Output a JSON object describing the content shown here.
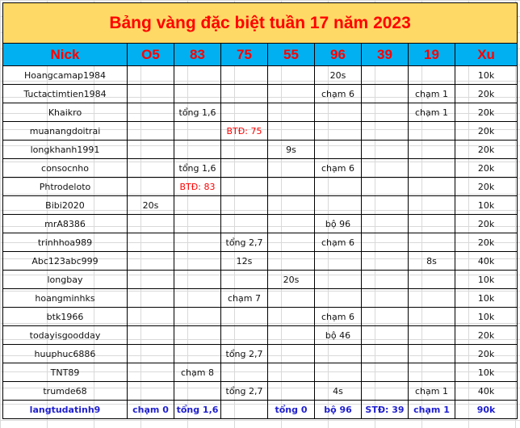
{
  "title": "Bảng vàng đặc biệt tuần 17 năm 2023",
  "columns": [
    "Nick",
    "O5",
    "83",
    "75",
    "55",
    "96",
    "39",
    "19",
    "Xu"
  ],
  "colors": {
    "title_bg": "#ffd966",
    "header_bg": "#00b0f0",
    "header_text": "#ff0000",
    "highlight_red": "#ff0000",
    "highlight_blue": "#1f1fd0"
  },
  "rows": [
    {
      "cells": [
        "Hoangcamap1984",
        "",
        "",
        "",
        "",
        "20s",
        "",
        "",
        "10k"
      ]
    },
    {
      "cells": [
        "Tuctactimtien1984",
        "",
        "",
        "",
        "",
        "chạm 6",
        "",
        "chạm 1",
        "20k"
      ]
    },
    {
      "cells": [
        "Khaikro",
        "",
        "tổng 1,6",
        "",
        "",
        "",
        "",
        "chạm 1",
        "20k"
      ]
    },
    {
      "cells": [
        "muanangdoitrai",
        "",
        "",
        "BTĐ: 75",
        "",
        "",
        "",
        "",
        "20k"
      ],
      "red": [
        3
      ]
    },
    {
      "cells": [
        "longkhanh1991",
        "",
        "",
        "",
        "9s",
        "",
        "",
        "",
        "20k"
      ]
    },
    {
      "cells": [
        "consocnho",
        "",
        "tổng 1,6",
        "",
        "",
        "chạm 6",
        "",
        "",
        "20k"
      ]
    },
    {
      "cells": [
        "Phtrodeloto",
        "",
        "BTĐ: 83",
        "",
        "",
        "",
        "",
        "",
        "20k"
      ],
      "red": [
        2
      ]
    },
    {
      "cells": [
        "Bibi2020",
        "20s",
        "",
        "",
        "",
        "",
        "",
        "",
        "10k"
      ]
    },
    {
      "cells": [
        "mrA8386",
        "",
        "",
        "",
        "",
        "bộ 96",
        "",
        "",
        "20k"
      ]
    },
    {
      "cells": [
        "trinhhoa989",
        "",
        "",
        "tổng 2,7",
        "",
        "chạm 6",
        "",
        "",
        "20k"
      ]
    },
    {
      "cells": [
        "Abc123abc999",
        "",
        "",
        "12s",
        "",
        "",
        "",
        "8s",
        "40k"
      ]
    },
    {
      "cells": [
        "longbay",
        "",
        "",
        "",
        "20s",
        "",
        "",
        "",
        "10k"
      ]
    },
    {
      "cells": [
        "hoangminhks",
        "",
        "",
        "chạm 7",
        "",
        "",
        "",
        "",
        "10k"
      ]
    },
    {
      "cells": [
        "btk1966",
        "",
        "",
        "",
        "",
        "chạm 6",
        "",
        "",
        "10k"
      ]
    },
    {
      "cells": [
        "todayisgoodday",
        "",
        "",
        "",
        "",
        "bộ 46",
        "",
        "",
        "20k"
      ]
    },
    {
      "cells": [
        "huuphuc6886",
        "",
        "",
        "tổng 2,7",
        "",
        "",
        "",
        "",
        "20k"
      ]
    },
    {
      "cells": [
        "TNT89",
        "",
        "chạm 8",
        "",
        "",
        "",
        "",
        "",
        "10k"
      ]
    },
    {
      "cells": [
        "trumde68",
        "",
        "",
        "tổng 2,7",
        "",
        "4s",
        "",
        "chạm 1",
        "40k"
      ]
    },
    {
      "cells": [
        "langtudatinh9",
        "chạm 0",
        "tổng 1,6",
        "",
        "tổng 0",
        "bộ 96",
        "STĐ: 39",
        "chạm 1",
        "90k"
      ],
      "blue": true
    }
  ]
}
